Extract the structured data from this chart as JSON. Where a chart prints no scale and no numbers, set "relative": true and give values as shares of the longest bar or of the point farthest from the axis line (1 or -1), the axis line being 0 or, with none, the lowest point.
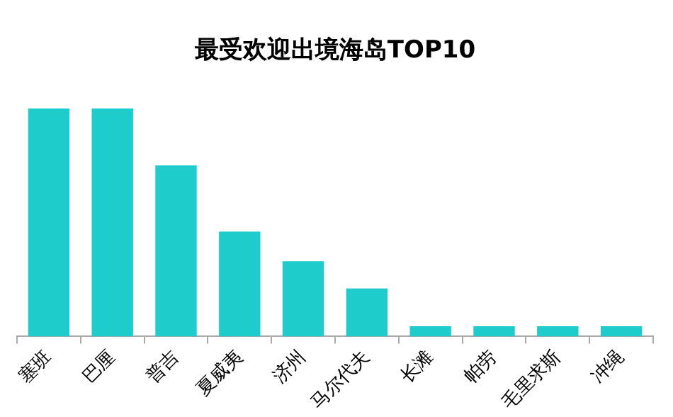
{
  "chart_data": {
    "type": "bar",
    "title": "最受欢迎出境海岛TOP10",
    "relative": true,
    "categories": [
      "塞班",
      "巴厘",
      "普吉",
      "夏威夷",
      "济州",
      "马尔代夫",
      "长滩",
      "帕劳",
      "毛里求斯",
      "冲绳"
    ],
    "values": [
      1,
      1,
      0.75,
      0.46,
      0.33,
      0.21,
      0.045,
      0.045,
      0.045,
      0.045
    ],
    "color": "#1fcccc",
    "grid": false,
    "legend": false
  }
}
